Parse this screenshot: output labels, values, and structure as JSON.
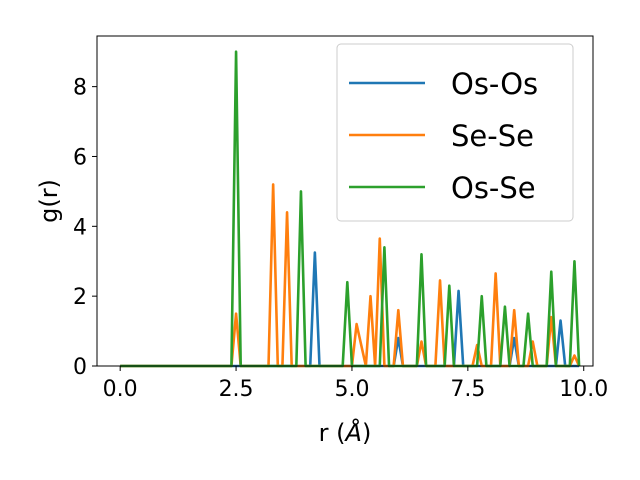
{
  "chart_data": {
    "type": "line",
    "title": "",
    "xlabel": "r (",
    "xlabel_unit": "Å",
    "xlabel_close": ")",
    "ylabel": "g(r)",
    "xlim": [
      -0.5,
      10.2
    ],
    "ylim": [
      0,
      9.45
    ],
    "xticks": [
      0.0,
      2.5,
      5.0,
      7.5,
      10.0
    ],
    "xtick_labels": [
      "0.0",
      "2.5",
      "5.0",
      "7.5",
      "10.0"
    ],
    "yticks": [
      0,
      2,
      4,
      6,
      8
    ],
    "ytick_labels": [
      "0",
      "2",
      "4",
      "6",
      "8"
    ],
    "grid": false,
    "legend_position": "upper-right",
    "series": [
      {
        "name": "Os-Os",
        "color": "#1f77b4",
        "x": [
          0,
          4.0,
          4.1,
          4.2,
          4.3,
          4.4,
          5.8,
          5.9,
          6.0,
          6.1,
          7.1,
          7.2,
          7.3,
          7.4,
          8.3,
          8.4,
          8.5,
          8.6,
          9.4,
          9.5,
          9.6,
          9.9
        ],
        "y": [
          0,
          0,
          0,
          3.25,
          0,
          0,
          0,
          0,
          0.8,
          0,
          0,
          0,
          2.15,
          0,
          0,
          0,
          0.8,
          0,
          0,
          1.3,
          0,
          0
        ]
      },
      {
        "name": "Se-Se",
        "color": "#ff7f0e",
        "x": [
          0,
          2.4,
          2.5,
          2.6,
          3.2,
          3.3,
          3.4,
          3.5,
          3.6,
          3.7,
          4.8,
          5.0,
          5.1,
          5.3,
          5.4,
          5.5,
          5.6,
          5.7,
          5.9,
          6.0,
          6.1,
          6.4,
          6.5,
          6.6,
          6.8,
          6.9,
          7.0,
          7.6,
          7.7,
          7.8,
          8.0,
          8.1,
          8.2,
          8.4,
          8.5,
          8.6,
          8.8,
          8.9,
          9.0,
          9.2,
          9.3,
          9.4,
          9.7,
          9.8,
          9.9
        ],
        "y": [
          0,
          0,
          1.5,
          0,
          0,
          5.2,
          0,
          0,
          4.4,
          0,
          0,
          0,
          1.2,
          0,
          2.0,
          0,
          3.65,
          0,
          0,
          1.6,
          0,
          0,
          0.7,
          0,
          0,
          2.45,
          0,
          0,
          0.6,
          0,
          0,
          2.65,
          0,
          0,
          1.6,
          0,
          0,
          0.7,
          0,
          0,
          1.4,
          0,
          0,
          0.3,
          0
        ]
      },
      {
        "name": "Os-Se",
        "color": "#2ca02c",
        "x": [
          0,
          2.4,
          2.5,
          2.6,
          3.8,
          3.9,
          4.0,
          4.8,
          4.9,
          5.0,
          5.6,
          5.7,
          5.8,
          6.4,
          6.5,
          6.6,
          7.0,
          7.1,
          7.2,
          7.7,
          7.8,
          7.9,
          8.2,
          8.3,
          8.4,
          8.7,
          8.8,
          8.9,
          9.2,
          9.3,
          9.4,
          9.7,
          9.8,
          9.9
        ],
        "y": [
          0,
          0,
          9.0,
          0,
          0,
          5.0,
          0,
          0,
          2.4,
          0,
          0,
          3.4,
          0,
          0,
          3.2,
          0,
          0,
          2.3,
          0,
          0,
          2.0,
          0,
          0,
          1.7,
          0,
          0,
          1.5,
          0,
          0,
          2.7,
          0,
          0,
          3.0,
          0
        ]
      }
    ]
  }
}
